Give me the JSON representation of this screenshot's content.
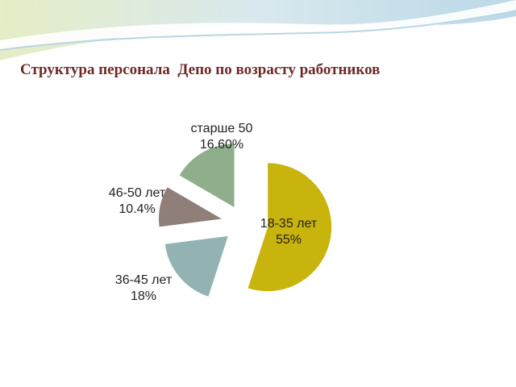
{
  "chart_data": {
    "type": "pie",
    "title": "Структура персонала  Депо по возрасту работников",
    "categories": [
      "18-35 лет",
      "36-45 лет",
      "46-50 лет",
      "старше 50"
    ],
    "values": [
      55,
      18,
      10.4,
      16.6
    ],
    "value_labels": [
      "55%",
      "18%",
      "10.4%",
      "16.60%"
    ],
    "colors": [
      "#c8b40c",
      "#93b3b3",
      "#8f7f78",
      "#8fae8c"
    ]
  }
}
